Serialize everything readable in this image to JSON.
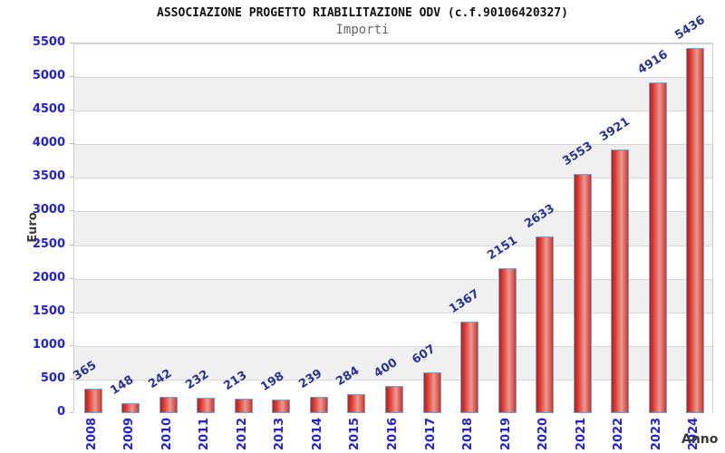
{
  "chart_data": {
    "type": "bar",
    "title": "ASSOCIAZIONE PROGETTO RIABILITAZIONE ODV (c.f.90106420327)",
    "subtitle": "Importi",
    "xlabel": "Anno",
    "ylabel": "Euro",
    "categories": [
      "2008",
      "2009",
      "2010",
      "2011",
      "2012",
      "2013",
      "2014",
      "2015",
      "2016",
      "2017",
      "2018",
      "2019",
      "2020",
      "2021",
      "2022",
      "2023",
      "2024"
    ],
    "values": [
      365,
      148,
      242,
      232,
      213,
      198,
      239,
      284,
      400,
      607,
      1367,
      2151,
      2633,
      3553,
      3921,
      4916,
      5436
    ],
    "ylim": [
      0,
      5500
    ],
    "ytick_step": 500,
    "yticks": [
      0,
      500,
      1000,
      1500,
      2000,
      2500,
      3000,
      3500,
      4000,
      4500,
      5000,
      5500
    ],
    "grid": true,
    "legend": false,
    "style": {
      "tick_label_color": "#2222d6",
      "value_label_color": "#283593",
      "bar_border_color": "#64a8dc",
      "bar_gradient": [
        "#b71f1f",
        "#e0392e",
        "#e89a94",
        "#d2352b"
      ],
      "band_color": "#f0f0f0",
      "grid_color": "#d6d6d6",
      "plot_border_color": "#cccccc",
      "title_color": "#111111",
      "subtitle_color": "#666666",
      "axis_title_color": "#3a3a3a"
    }
  }
}
